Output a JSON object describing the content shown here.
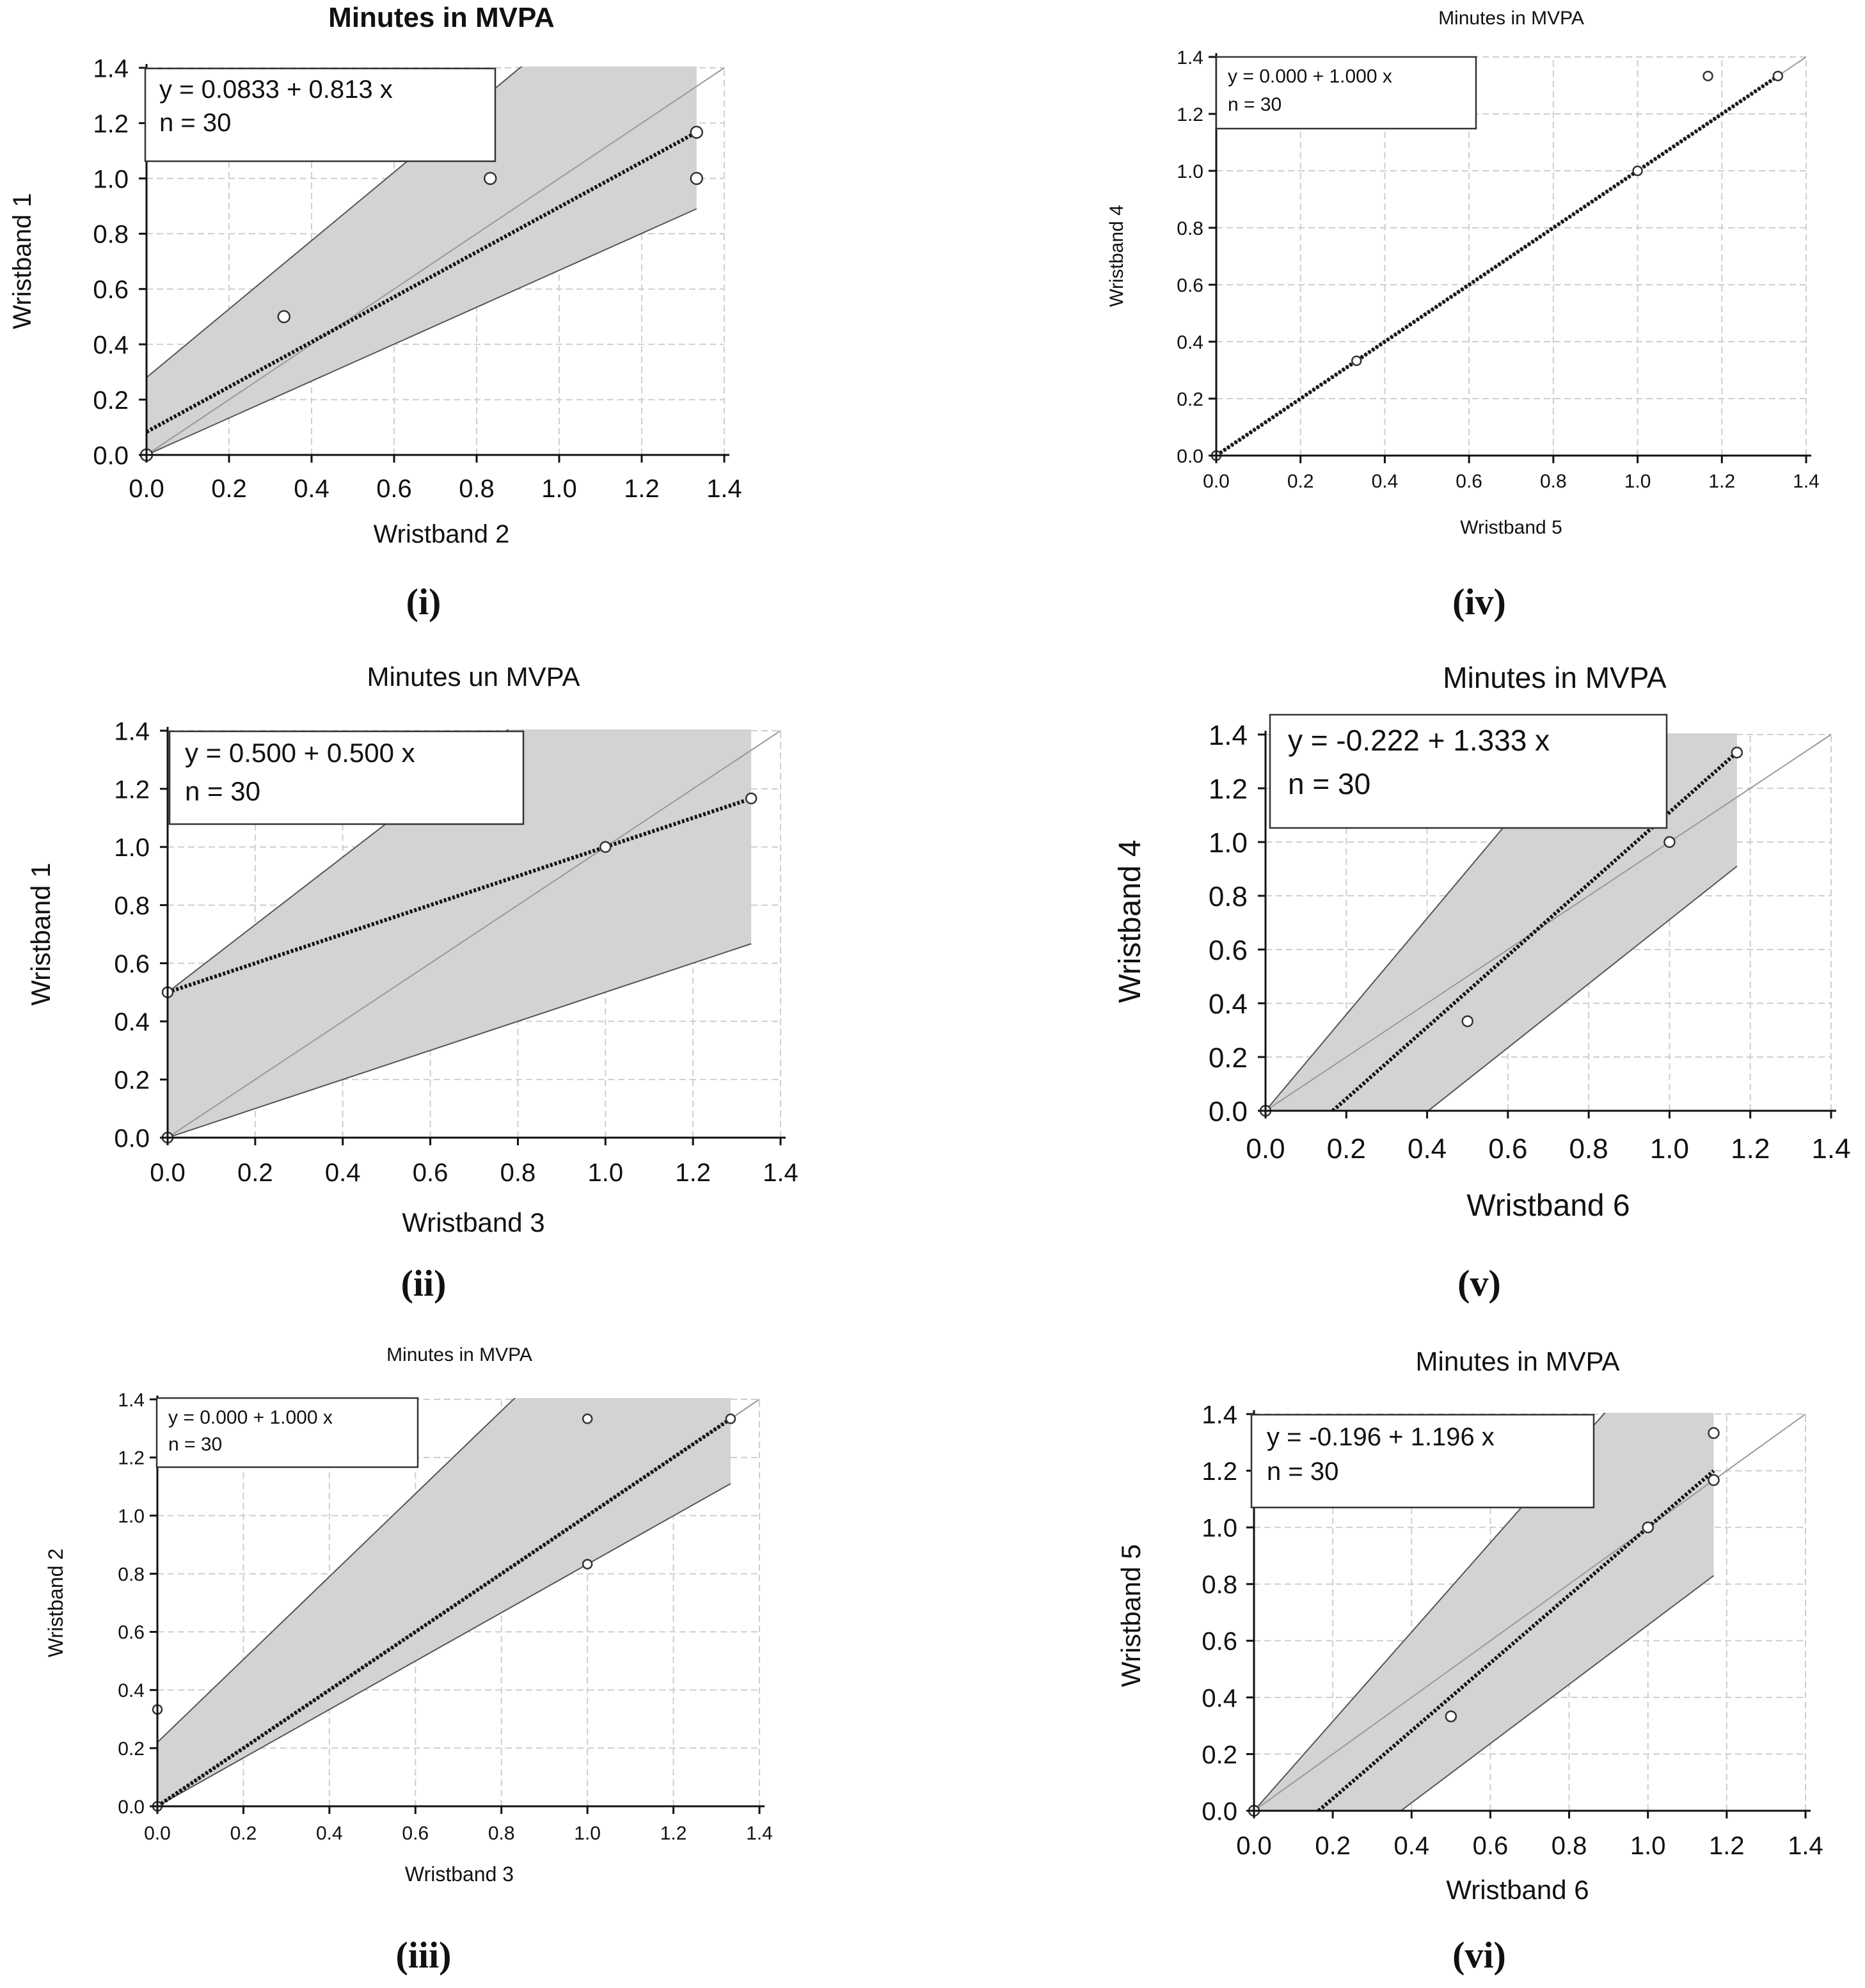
{
  "figure": {
    "description": "Six Passing-Bablok regression scatter plots comparing wristbands"
  },
  "chart_data": [
    {
      "type": "scatter",
      "panel_label": "(i)",
      "title": "Minutes in MVPA",
      "xlabel": "Wristband 2",
      "ylabel": "Wristband 1",
      "xlim": [
        0,
        1.4
      ],
      "ylim": [
        0,
        1.4
      ],
      "ticks": [
        0.0,
        0.2,
        0.4,
        0.6,
        0.8,
        1.0,
        1.2,
        1.4
      ],
      "tick_labels": [
        "0.0",
        "0.2",
        "0.4",
        "0.6",
        "0.8",
        "1.0",
        "1.2",
        "1.4"
      ],
      "equation": "y = 0.0833 + 0.813 x",
      "n_label": "n = 30",
      "intercept": 0.0833,
      "slope": 0.813,
      "fit_x_range": [
        0,
        1.333
      ],
      "ci_band": {
        "x": [
          0,
          1.333
        ],
        "lower": [
          0.0,
          0.89
        ],
        "upper": [
          0.28,
          1.93
        ]
      },
      "points": [
        [
          0,
          0
        ],
        [
          0.333,
          0.5
        ],
        [
          0.833,
          1.0
        ],
        [
          1.333,
          1.167
        ],
        [
          1.333,
          1.0
        ]
      ]
    },
    {
      "type": "scatter",
      "panel_label": "(ii)",
      "title": "Minutes un MVPA",
      "xlabel": "Wristband 3",
      "ylabel": "Wristband 1",
      "xlim": [
        0,
        1.4
      ],
      "ylim": [
        0,
        1.4
      ],
      "ticks": [
        0.0,
        0.2,
        0.4,
        0.6,
        0.8,
        1.0,
        1.2,
        1.4
      ],
      "tick_labels": [
        "0.0",
        "0.2",
        "0.4",
        "0.6",
        "0.8",
        "1.0",
        "1.2",
        "1.4"
      ],
      "equation": "y = 0.500 + 0.500 x",
      "n_label": "n = 30",
      "intercept": 0.5,
      "slope": 0.5,
      "fit_x_range": [
        0,
        1.333
      ],
      "ci_band": {
        "x": [
          0,
          1.333
        ],
        "lower": [
          0.0,
          0.667
        ],
        "upper": [
          0.5,
          2.05
        ]
      },
      "points": [
        [
          0,
          0
        ],
        [
          0,
          0.5
        ],
        [
          1.0,
          1.0
        ],
        [
          1.333,
          1.167
        ]
      ]
    },
    {
      "type": "scatter",
      "panel_label": "(iii)",
      "title": "Minutes in MVPA",
      "xlabel": "Wristband 3",
      "ylabel": "Wristband 2",
      "xlim": [
        0,
        1.4
      ],
      "ylim": [
        0,
        1.4
      ],
      "ticks": [
        0.0,
        0.2,
        0.4,
        0.6,
        0.8,
        1.0,
        1.2,
        1.4
      ],
      "tick_labels": [
        "0.0",
        "0.2",
        "0.4",
        "0.6",
        "0.8",
        "1.0",
        "1.2",
        "1.4"
      ],
      "equation": "y = 0.000 + 1.000 x",
      "n_label": "n = 30",
      "intercept": 0.0,
      "slope": 1.0,
      "fit_x_range": [
        0,
        1.333
      ],
      "ci_band": {
        "x": [
          0,
          1.333
        ],
        "lower": [
          0.0,
          1.11
        ],
        "upper": [
          0.22,
          2.12
        ]
      },
      "points": [
        [
          0,
          0
        ],
        [
          0,
          0.333
        ],
        [
          1.0,
          0.833
        ],
        [
          1.0,
          1.333
        ],
        [
          1.333,
          1.333
        ]
      ]
    },
    {
      "type": "scatter",
      "panel_label": "(iv)",
      "title": "Minutes in MVPA",
      "xlabel": "Wristband 5",
      "ylabel": "Wristband 4",
      "xlim": [
        0,
        1.4
      ],
      "ylim": [
        0,
        1.4
      ],
      "ticks": [
        0.0,
        0.2,
        0.4,
        0.6,
        0.8,
        1.0,
        1.2,
        1.4
      ],
      "tick_labels": [
        "0.0",
        "0.2",
        "0.4",
        "0.6",
        "0.8",
        "1.0",
        "1.2",
        "1.4"
      ],
      "equation": "y = 0.000 + 1.000 x",
      "n_label": "n = 30",
      "intercept": 0.0,
      "slope": 1.0,
      "fit_x_range": [
        0,
        1.333
      ],
      "ci_band": null,
      "points": [
        [
          0,
          0
        ],
        [
          0.333,
          0.333
        ],
        [
          1.0,
          1.0
        ],
        [
          1.167,
          1.333
        ],
        [
          1.333,
          1.333
        ]
      ]
    },
    {
      "type": "scatter",
      "panel_label": "(v)",
      "title": "Minutes in MVPA",
      "xlabel": "Wristband 6",
      "ylabel": "Wristband 4",
      "xlim": [
        0,
        1.4
      ],
      "ylim": [
        0,
        1.4
      ],
      "ticks": [
        0.0,
        0.2,
        0.4,
        0.6,
        0.8,
        1.0,
        1.2,
        1.4
      ],
      "tick_labels": [
        "0.0",
        "0.2",
        "0.4",
        "0.6",
        "0.8",
        "1.0",
        "1.2",
        "1.4"
      ],
      "equation": "y = -0.222 + 1.333 x",
      "n_label": "n = 30",
      "intercept": -0.222,
      "slope": 1.333,
      "fit_x_range": [
        0.1665,
        1.167
      ],
      "ci_band": {
        "x": [
          0,
          1.167
        ],
        "lower": [
          -0.48,
          0.91
        ],
        "upper": [
          0.0,
          2.09
        ]
      },
      "points": [
        [
          0,
          0
        ],
        [
          0.5,
          0.333
        ],
        [
          1.0,
          1.0
        ],
        [
          1.167,
          1.333
        ]
      ]
    },
    {
      "type": "scatter",
      "panel_label": "(vi)",
      "title": "Minutes in MVPA",
      "xlabel": "Wristband 6",
      "ylabel": "Wristband 5",
      "xlim": [
        0,
        1.4
      ],
      "ylim": [
        0,
        1.4
      ],
      "ticks": [
        0.0,
        0.2,
        0.4,
        0.6,
        0.8,
        1.0,
        1.2,
        1.4
      ],
      "tick_labels": [
        "0.0",
        "0.2",
        "0.4",
        "0.6",
        "0.8",
        "1.0",
        "1.2",
        "1.4"
      ],
      "equation": "y = -0.196 + 1.196 x",
      "n_label": "n = 30",
      "intercept": -0.196,
      "slope": 1.196,
      "fit_x_range": [
        0.1639,
        1.167
      ],
      "ci_band": {
        "x": [
          0,
          1.167
        ],
        "lower": [
          -0.39,
          0.83
        ],
        "upper": [
          0.0,
          1.84
        ]
      },
      "points": [
        [
          0,
          0
        ],
        [
          0.5,
          0.333
        ],
        [
          1.0,
          1.0
        ],
        [
          1.167,
          1.167
        ],
        [
          1.167,
          1.333
        ]
      ]
    }
  ],
  "colors": {
    "band": "#d3d3d3",
    "band_edge": "#555555",
    "fit_line": "#111111",
    "identity_line": "#9a9a9a",
    "grid": "#cfcfcf",
    "axis": "#111111"
  }
}
